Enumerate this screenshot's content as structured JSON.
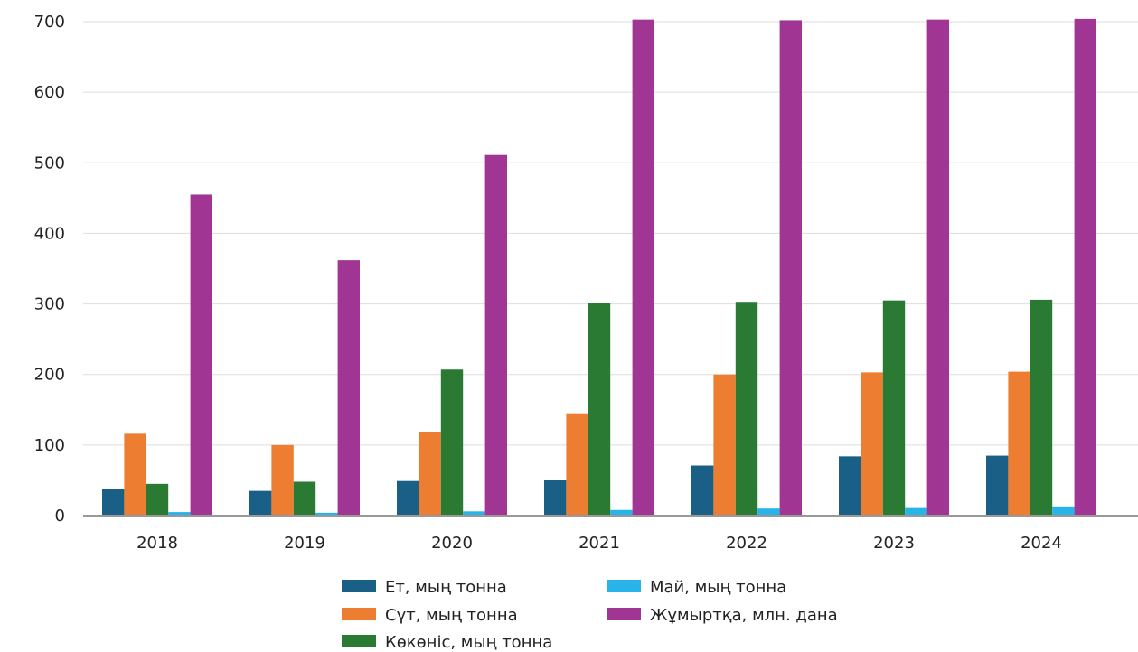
{
  "chart_data": {
    "type": "bar",
    "categories": [
      "2018",
      "2019",
      "2020",
      "2021",
      "2022",
      "2023",
      "2024"
    ],
    "series": [
      {
        "name": "Ет, мың тонна",
        "color": "#1a5f86",
        "values": [
          38,
          35,
          49,
          50,
          71,
          84,
          85
        ]
      },
      {
        "name": "Сүт, мың тонна",
        "color": "#ed7d31",
        "values": [
          116,
          100,
          119,
          145,
          200,
          203,
          204
        ]
      },
      {
        "name": "Көкөніс, мың тонна",
        "color": "#2a7a34",
        "values": [
          45,
          48,
          207,
          302,
          303,
          305,
          306
        ]
      },
      {
        "name": "Май, мың тонна",
        "color": "#29b4e9",
        "values": [
          5,
          4,
          6,
          8,
          10,
          12,
          13
        ]
      },
      {
        "name": "Жұмыртқа, млн. дана",
        "color": "#a03594",
        "values": [
          455,
          362,
          511,
          703,
          702,
          703,
          704
        ]
      }
    ],
    "ylim": [
      0,
      700
    ],
    "yticks": [
      "0",
      "100",
      "200",
      "300",
      "400",
      "500",
      "600",
      "700"
    ],
    "grid": true,
    "legend_position": "bottom"
  }
}
